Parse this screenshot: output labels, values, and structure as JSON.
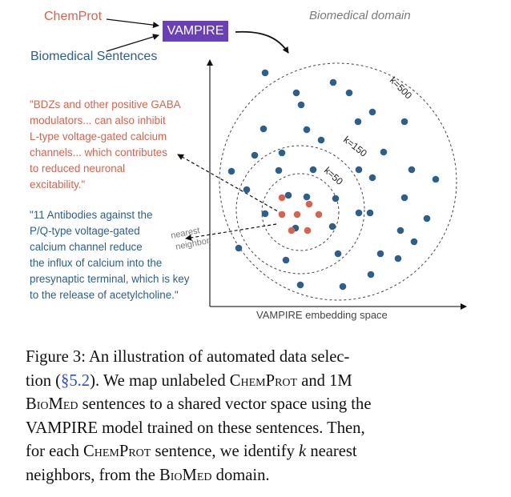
{
  "labels": {
    "chemprot": "ChemProt",
    "biomedical_sentences": "Biomedical Sentences",
    "vampire": "VAMPIRE",
    "domain": "Biomedical domain",
    "axis": "VAMPIRE embedding space",
    "nearest": "nearest",
    "neighbor": "neighbor",
    "k500": "k=500",
    "k150": "k=150",
    "k50": "k=50"
  },
  "quote_chemprot": [
    "\"BDZs and other positive GABA",
    "modulators... can also inhibit",
    "L-type voltage-gated calcium",
    "channels... which contributes",
    "to reduced neuronal",
    "excitability.\""
  ],
  "quote_biomed": [
    "\"11 Antibodies against the",
    "P/Q-type voltage-gated",
    "calcium channel reduce",
    "the influx of calcium into the",
    "presynaptic terminal, which is key",
    "to the release of acetylcholine.\""
  ],
  "colors": {
    "chemprot": "#d9634f",
    "biomed": "#2c5f8a",
    "vampire_box": "#6b3fb8"
  },
  "caption": {
    "line1": "Figure 3:  An illustration of automated data selec-",
    "line2_a": "tion (",
    "line2_ref": "§5.2",
    "line2_b": ").  We map unlabeled ",
    "line2_sc1": "ChemProt",
    "line2_c": " and 1M",
    "line3_sc": "BioMed",
    "line3_b": " sentences to a shared vector space using the",
    "line4": "VAMPIRE model trained on these sentences.  Then,",
    "line5_a": "for each ",
    "line5_sc": "ChemProt",
    "line5_b": " sentence, we identify ",
    "line5_k": "k",
    "line5_c": " nearest",
    "line6_a": "neighbors, from the ",
    "line6_sc": "BioMed",
    "line6_b": " domain."
  }
}
